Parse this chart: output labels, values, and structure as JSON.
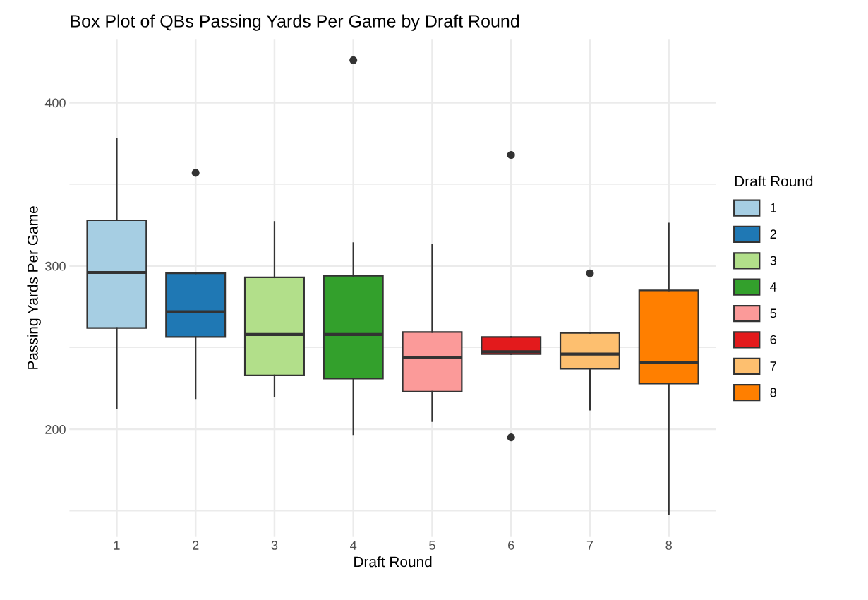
{
  "chart_data": {
    "type": "box",
    "title": "Box Plot of QBs Passing Yards Per Game by Draft Round",
    "xlabel": "Draft Round",
    "ylabel": "Passing Yards Per Game",
    "legend_title": "Draft Round",
    "categories": [
      "1",
      "2",
      "3",
      "4",
      "5",
      "6",
      "7",
      "8"
    ],
    "series": [
      {
        "name": "1",
        "color": "#a6cee3",
        "boxes": [
          {
            "low": 213,
            "q1": 262,
            "median": 296,
            "q3": 328,
            "high": 378
          },
          null,
          null,
          null,
          null,
          null,
          null,
          null
        ]
      },
      {
        "name": "2",
        "color": "#1f78b4",
        "boxes": [
          null,
          {
            "low": 219,
            "q1": 256.5,
            "median": 272,
            "q3": 295.5,
            "high": 295.5,
            "outliers": [
              357
            ]
          },
          null,
          null,
          null,
          null,
          null,
          null
        ]
      },
      {
        "name": "3",
        "color": "#b2df8a",
        "boxes": [
          null,
          null,
          {
            "low": 220,
            "q1": 233,
            "median": 258,
            "q3": 293,
            "high": 327
          },
          null,
          null,
          null,
          null,
          null
        ]
      },
      {
        "name": "4",
        "color": "#33a02c",
        "boxes": [
          null,
          null,
          null,
          {
            "low": 197,
            "q1": 231,
            "median": 258,
            "q3": 294,
            "high": 314,
            "outliers": [
              426
            ]
          },
          null,
          null,
          null,
          null
        ]
      },
      {
        "name": "5",
        "color": "#fb9a99",
        "boxes": [
          null,
          null,
          null,
          null,
          {
            "low": 205,
            "q1": 223,
            "median": 244,
            "q3": 259.5,
            "high": 313
          },
          null,
          null,
          null
        ]
      },
      {
        "name": "6",
        "color": "#e31a1c",
        "boxes": [
          null,
          null,
          null,
          null,
          null,
          {
            "low": 246,
            "q1": 246,
            "median": 247.5,
            "q3": 256.5,
            "high": 256.5,
            "outliers": [
              368,
              195
            ]
          },
          null,
          null
        ]
      },
      {
        "name": "7",
        "color": "#fdbf6f",
        "boxes": [
          null,
          null,
          null,
          null,
          null,
          null,
          {
            "low": 212,
            "q1": 237,
            "median": 246,
            "q3": 259,
            "high": 259,
            "outliers": [
              295.5
            ]
          },
          null
        ]
      },
      {
        "name": "8",
        "color": "#ff7f00",
        "boxes": [
          null,
          null,
          null,
          null,
          null,
          null,
          null,
          {
            "low": 148,
            "q1": 228,
            "median": 241,
            "q3": 285,
            "high": 326
          }
        ]
      }
    ],
    "ylim": [
      134,
      439
    ],
    "yticks": [
      {
        "value": 150,
        "label": null
      },
      200,
      {
        "value": 250,
        "label": null
      },
      300,
      {
        "value": 350,
        "label": null
      },
      400
    ],
    "grid": true,
    "legend": "right"
  }
}
